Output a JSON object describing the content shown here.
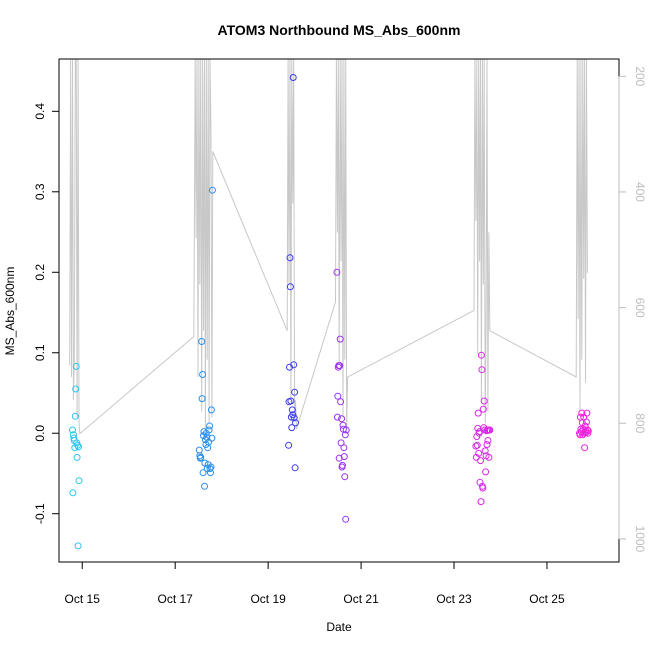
{
  "chart_data": {
    "type": "scatter",
    "title": "ATOM3 Northbound MS_Abs_600nm",
    "xlabel": "Date",
    "ylabel": "MS_Abs_600nm",
    "xlim": [
      14.45,
      26.5
    ],
    "ylim": [
      -0.16,
      0.465
    ],
    "x_ticks": [
      {
        "value": 14.95,
        "label": "Oct 15"
      },
      {
        "value": 16.95,
        "label": "Oct 17"
      },
      {
        "value": 18.95,
        "label": "Oct 19"
      },
      {
        "value": 20.95,
        "label": "Oct 21"
      },
      {
        "value": 22.95,
        "label": "Oct 23"
      },
      {
        "value": 24.95,
        "label": "Oct 25"
      }
    ],
    "y_ticks": [
      {
        "value": -0.1,
        "label": "-0.1"
      },
      {
        "value": 0.0,
        "label": "0.0"
      },
      {
        "value": 0.1,
        "label": "0.1"
      },
      {
        "value": 0.2,
        "label": "0.2"
      },
      {
        "value": 0.3,
        "label": "0.3"
      },
      {
        "value": 0.4,
        "label": "0.4"
      }
    ],
    "y2_ticks": [
      {
        "value": 200,
        "label": "200"
      },
      {
        "value": 400,
        "label": "400"
      },
      {
        "value": 600,
        "label": "600"
      },
      {
        "value": 800,
        "label": "800"
      },
      {
        "value": 1000,
        "label": "1000"
      }
    ],
    "y2lim": [
      1040,
      170
    ],
    "y2_inverted": true,
    "grid": false,
    "marker": "open-circle",
    "colors": {
      "series_start": "#2ec4ee",
      "series_mid": "#3b3bf0",
      "series_end": "#ee22dd",
      "pressure_line": "#c8c8c8"
    },
    "series": [
      {
        "color": "#2ec4ee",
        "points": [
          [
            14.74,
            0.004
          ],
          [
            14.75,
            -0.074
          ],
          [
            14.76,
            -0.002
          ],
          [
            14.77,
            -0.006
          ],
          [
            14.78,
            -0.009
          ],
          [
            14.79,
            -0.018
          ],
          [
            14.8,
            0.021
          ],
          [
            14.81,
            0.055
          ],
          [
            14.82,
            0.083
          ],
          [
            14.83,
            -0.012
          ],
          [
            14.84,
            -0.03
          ],
          [
            14.85,
            -0.015
          ],
          [
            14.86,
            -0.14
          ],
          [
            14.87,
            -0.017
          ],
          [
            14.88,
            -0.059
          ]
        ]
      },
      {
        "color": "#2a8ff0",
        "points": [
          [
            17.47,
            -0.021
          ],
          [
            17.48,
            -0.028
          ],
          [
            17.49,
            -0.031
          ],
          [
            17.5,
            -0.03
          ],
          [
            17.52,
            0.114
          ],
          [
            17.53,
            0.043
          ],
          [
            17.54,
            0.073
          ],
          [
            17.55,
            -0.049
          ],
          [
            17.56,
            -0.003
          ],
          [
            17.57,
            0.002
          ],
          [
            17.58,
            -0.066
          ],
          [
            17.59,
            -0.037
          ],
          [
            17.6,
            -0.008
          ],
          [
            17.61,
            -0.014
          ],
          [
            17.62,
            0.0
          ],
          [
            17.63,
            -0.005
          ],
          [
            17.64,
            -0.044
          ],
          [
            17.65,
            -0.018
          ],
          [
            17.66,
            -0.039
          ],
          [
            17.67,
            -0.011
          ],
          [
            17.68,
            0.004
          ],
          [
            17.69,
            0.009
          ],
          [
            17.7,
            -0.044
          ],
          [
            17.71,
            -0.049
          ],
          [
            17.72,
            -0.042
          ],
          [
            17.73,
            0.029
          ],
          [
            17.74,
            -0.006
          ],
          [
            17.75,
            0.302
          ]
        ]
      },
      {
        "color": "#3b3bf0",
        "points": [
          [
            19.39,
            -0.015
          ],
          [
            19.4,
            0.039
          ],
          [
            19.41,
            0.082
          ],
          [
            19.42,
            0.218
          ],
          [
            19.43,
            0.182
          ],
          [
            19.44,
            0.04
          ],
          [
            19.45,
            0.02
          ],
          [
            19.46,
            0.007
          ],
          [
            19.47,
            0.029
          ],
          [
            19.48,
            0.023
          ],
          [
            19.49,
            0.442
          ],
          [
            19.5,
            0.085
          ],
          [
            19.51,
            0.019
          ],
          [
            19.52,
            0.051
          ],
          [
            19.53,
            -0.043
          ],
          [
            19.54,
            0.013
          ]
        ]
      },
      {
        "color": "#9a33f0",
        "points": [
          [
            20.43,
            0.2
          ],
          [
            20.44,
            0.02
          ],
          [
            20.45,
            0.046
          ],
          [
            20.46,
            0.082
          ],
          [
            20.47,
            0.084
          ],
          [
            20.48,
            -0.031
          ],
          [
            20.49,
            0.084
          ],
          [
            20.5,
            0.117
          ],
          [
            20.51,
            0.039
          ],
          [
            20.52,
            -0.012
          ],
          [
            20.53,
            0.018
          ],
          [
            20.54,
            -0.042
          ],
          [
            20.55,
            -0.04
          ],
          [
            20.56,
            0.01
          ],
          [
            20.57,
            0.005
          ],
          [
            20.58,
            -0.018
          ],
          [
            20.59,
            -0.029
          ],
          [
            20.6,
            -0.054
          ],
          [
            20.61,
            -0.002
          ],
          [
            20.62,
            -0.107
          ],
          [
            20.63,
            0.004
          ]
        ]
      },
      {
        "color": "#d82ae8",
        "points": [
          [
            23.42,
            -0.016
          ],
          [
            23.43,
            -0.03
          ],
          [
            23.44,
            -0.004
          ],
          [
            23.45,
            -0.015
          ],
          [
            23.46,
            0.006
          ],
          [
            23.47,
            0.025
          ],
          [
            23.48,
            -0.025
          ],
          [
            23.49,
            0.0
          ],
          [
            23.5,
            0.002
          ],
          [
            23.51,
            -0.061
          ],
          [
            23.52,
            -0.034
          ],
          [
            23.53,
            -0.085
          ],
          [
            23.54,
            0.097
          ],
          [
            23.55,
            0.079
          ],
          [
            23.56,
            -0.066
          ],
          [
            23.57,
            -0.068
          ],
          [
            23.58,
            0.03
          ],
          [
            23.59,
            0.007
          ],
          [
            23.6,
            0.04
          ],
          [
            23.61,
            0.004
          ],
          [
            23.62,
            -0.022
          ],
          [
            23.63,
            -0.048
          ],
          [
            23.64,
            -0.028
          ],
          [
            23.65,
            0.003
          ],
          [
            23.66,
            -0.014
          ],
          [
            23.67,
            0.004
          ],
          [
            23.68,
            -0.009
          ],
          [
            23.69,
            0.004
          ],
          [
            23.7,
            -0.03
          ],
          [
            23.71,
            0.004
          ],
          [
            23.72,
            0.004
          ]
        ]
      },
      {
        "color": "#ee22dd",
        "points": [
          [
            25.65,
            0.0
          ],
          [
            25.66,
            -0.002
          ],
          [
            25.67,
            0.02
          ],
          [
            25.68,
            0.005
          ],
          [
            25.69,
            0.002
          ],
          [
            25.7,
            0.025
          ],
          [
            25.71,
            0.013
          ],
          [
            25.72,
            -0.002
          ],
          [
            25.73,
            0.005
          ],
          [
            25.74,
            0.02
          ],
          [
            25.75,
            0.0
          ],
          [
            25.76,
            -0.018
          ],
          [
            25.77,
            0.009
          ],
          [
            25.78,
            0.004
          ],
          [
            25.79,
            0.001
          ],
          [
            25.8,
            0.014
          ],
          [
            25.81,
            0.025
          ],
          [
            25.82,
            0.004
          ],
          [
            25.83,
            0.0
          ],
          [
            25.84,
            0.003
          ]
        ]
      }
    ],
    "pressure_series": {
      "color": "#c8c8c8",
      "points": [
        [
          14.68,
          700
        ],
        [
          14.7,
          170
        ],
        [
          14.72,
          720
        ],
        [
          14.74,
          170
        ],
        [
          14.76,
          760
        ],
        [
          14.78,
          690
        ],
        [
          14.8,
          170
        ],
        [
          14.82,
          170
        ],
        [
          14.84,
          790
        ],
        [
          14.86,
          170
        ],
        [
          14.88,
          800
        ],
        [
          14.9,
          818
        ],
        [
          17.35,
          650
        ],
        [
          17.38,
          170
        ],
        [
          17.4,
          480
        ],
        [
          17.42,
          170
        ],
        [
          17.44,
          720
        ],
        [
          17.46,
          170
        ],
        [
          17.48,
          560
        ],
        [
          17.5,
          170
        ],
        [
          17.52,
          780
        ],
        [
          17.54,
          170
        ],
        [
          17.56,
          640
        ],
        [
          17.58,
          170
        ],
        [
          17.6,
          820
        ],
        [
          17.62,
          170
        ],
        [
          17.64,
          690
        ],
        [
          17.66,
          170
        ],
        [
          17.68,
          800
        ],
        [
          17.7,
          170
        ],
        [
          17.72,
          300
        ],
        [
          17.74,
          790
        ],
        [
          17.76,
          330
        ],
        [
          19.36,
          640
        ],
        [
          19.38,
          170
        ],
        [
          19.4,
          560
        ],
        [
          19.42,
          170
        ],
        [
          19.44,
          760
        ],
        [
          19.46,
          170
        ],
        [
          19.48,
          420
        ],
        [
          19.5,
          170
        ],
        [
          19.52,
          790
        ],
        [
          19.54,
          760
        ],
        [
          19.56,
          810
        ],
        [
          20.4,
          590
        ],
        [
          20.42,
          170
        ],
        [
          20.44,
          470
        ],
        [
          20.46,
          170
        ],
        [
          20.48,
          700
        ],
        [
          20.5,
          170
        ],
        [
          20.52,
          520
        ],
        [
          20.54,
          170
        ],
        [
          20.56,
          790
        ],
        [
          20.58,
          170
        ],
        [
          20.6,
          690
        ],
        [
          20.62,
          170
        ],
        [
          20.64,
          810
        ],
        [
          20.66,
          720
        ],
        [
          23.38,
          605
        ],
        [
          23.4,
          170
        ],
        [
          23.42,
          450
        ],
        [
          23.44,
          170
        ],
        [
          23.46,
          680
        ],
        [
          23.48,
          170
        ],
        [
          23.5,
          520
        ],
        [
          23.52,
          170
        ],
        [
          23.54,
          760
        ],
        [
          23.56,
          170
        ],
        [
          23.58,
          560
        ],
        [
          23.6,
          170
        ],
        [
          23.62,
          800
        ],
        [
          23.64,
          620
        ],
        [
          23.66,
          170
        ],
        [
          23.68,
          780
        ],
        [
          23.7,
          470
        ],
        [
          23.72,
          640
        ],
        [
          25.58,
          720
        ],
        [
          25.6,
          170
        ],
        [
          25.62,
          620
        ],
        [
          25.64,
          170
        ],
        [
          25.66,
          780
        ],
        [
          25.68,
          170
        ],
        [
          25.7,
          690
        ],
        [
          25.72,
          170
        ],
        [
          25.74,
          550
        ],
        [
          25.76,
          170
        ],
        [
          25.78,
          730
        ],
        [
          25.8,
          170
        ],
        [
          25.82,
          540
        ]
      ]
    }
  }
}
